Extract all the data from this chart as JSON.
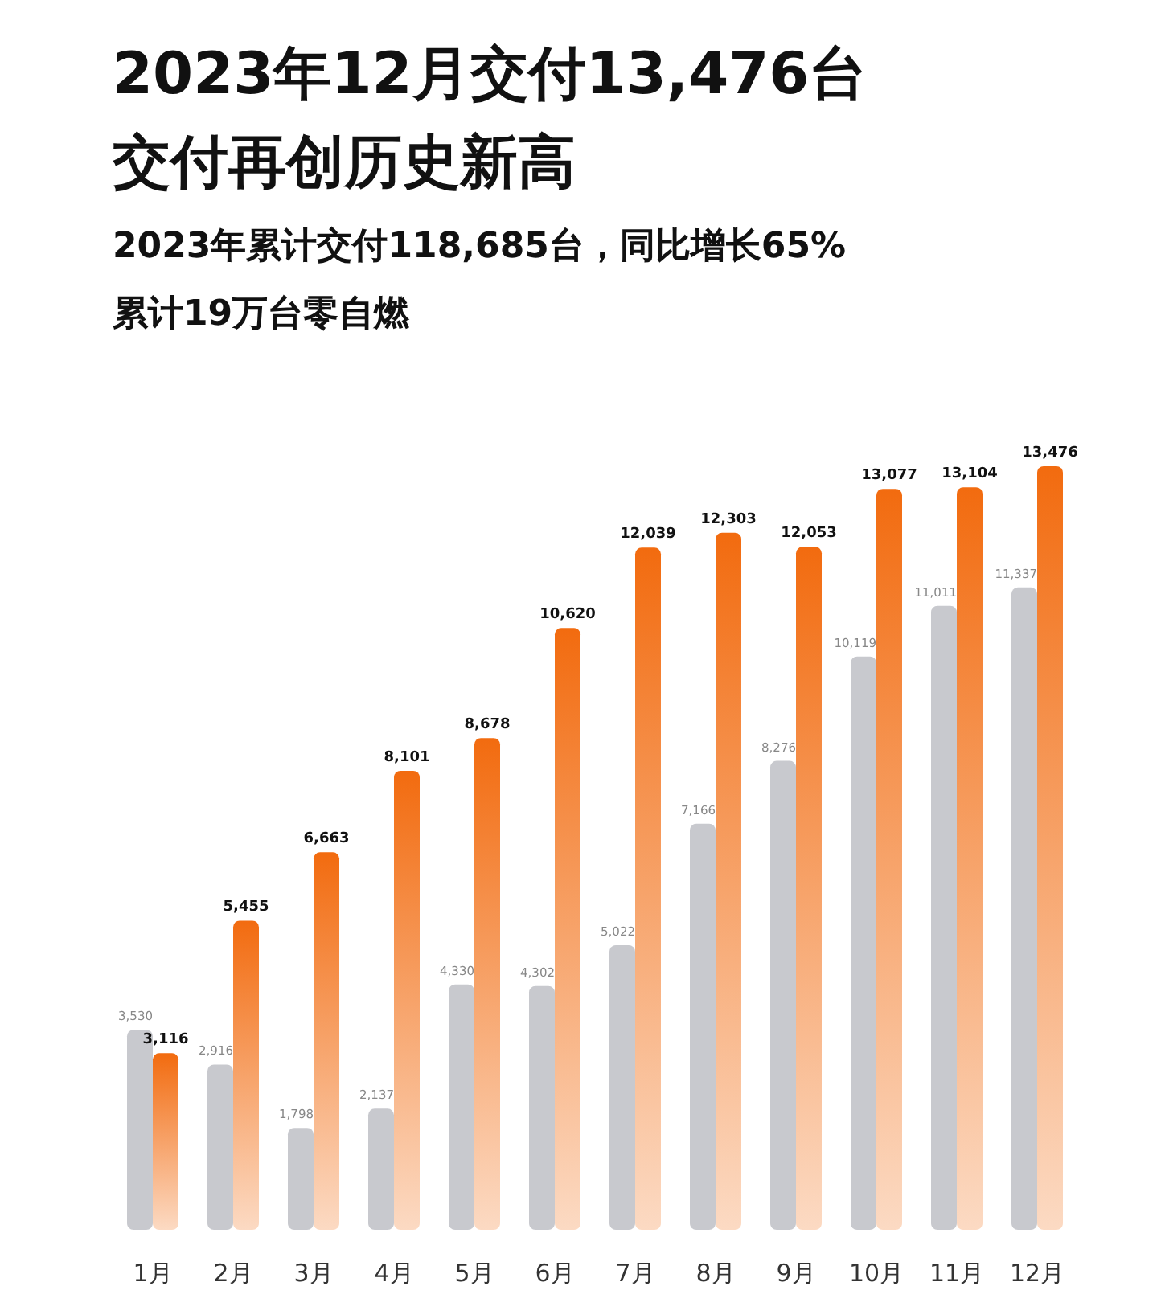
{
  "chart_data": {
    "type": "bar",
    "title": "2023年12月交付13,476台",
    "subtitle": "交付再创历史新高",
    "annotations": [
      "2023年累计交付118,685台，同比增长65%",
      "累计19万台零自燃"
    ],
    "categories": [
      "1月",
      "2月",
      "3月",
      "4月",
      "5月",
      "6月",
      "7月",
      "8月",
      "9月",
      "10月",
      "11月",
      "12月"
    ],
    "series": [
      {
        "color": "#c8c9ce",
        "values": [
          3530,
          2916,
          1798,
          2137,
          4330,
          4302,
          5022,
          7166,
          8276,
          10119,
          11011,
          11337
        ],
        "value_labels": [
          "3,530",
          "2,916",
          "1,798",
          "2,137",
          "4,330",
          "4,302",
          "5,022",
          "7,166",
          "8,276",
          "10,119",
          "11,011",
          "11,337"
        ]
      },
      {
        "color": "#f26b0f",
        "values": [
          3116,
          5455,
          6663,
          8101,
          8678,
          10620,
          12039,
          12303,
          12053,
          13077,
          13104,
          13476
        ],
        "value_labels": [
          "3,116",
          "5,455",
          "6,663",
          "8,101",
          "8,678",
          "10,620",
          "12,039",
          "12,303",
          "12,053",
          "13,077",
          "13,104",
          "13,476"
        ]
      }
    ]
  }
}
